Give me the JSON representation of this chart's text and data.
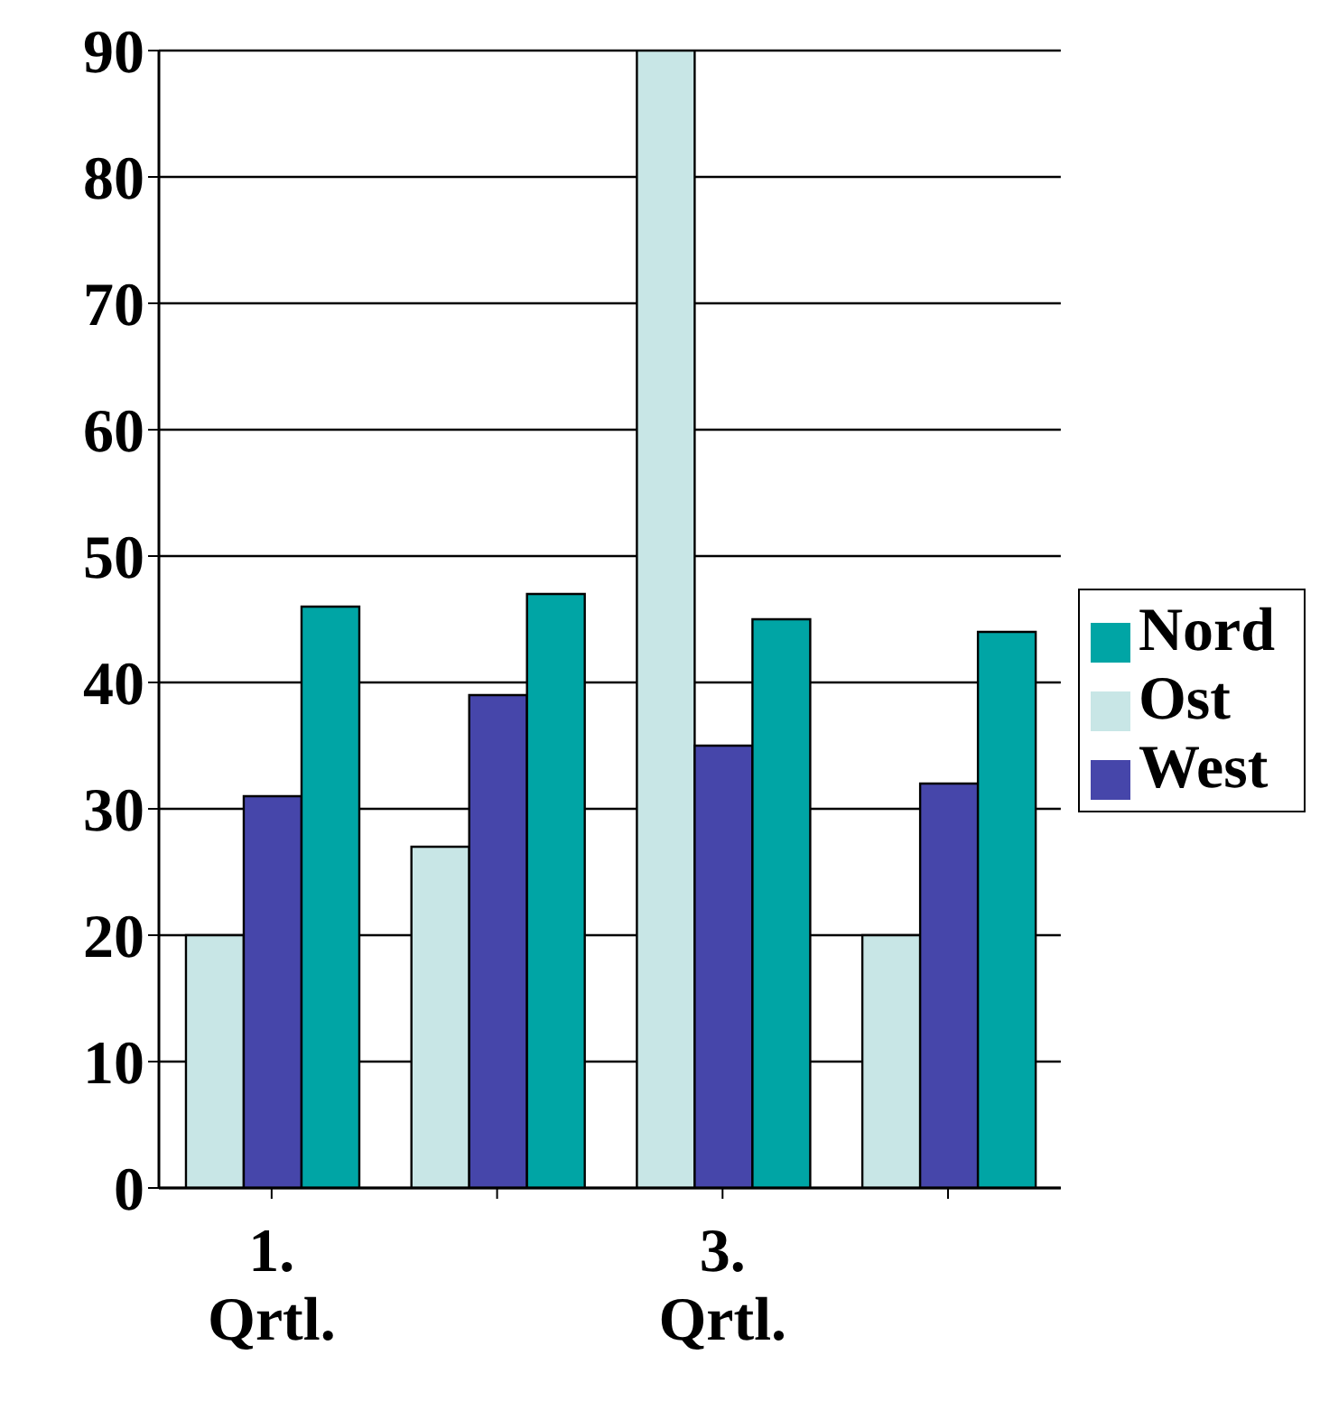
{
  "chart_data": {
    "type": "bar",
    "categories": [
      "1. Qrtl.",
      null,
      "3. Qrtl.",
      null
    ],
    "series": [
      {
        "name": "Ost",
        "color": "#c8e6e6",
        "values": [
          20,
          27,
          90,
          20
        ]
      },
      {
        "name": "West",
        "color": "#4646aa",
        "values": [
          31,
          39,
          35,
          32
        ]
      },
      {
        "name": "Nord",
        "color": "#00a5a5",
        "values": [
          46,
          47,
          45,
          44
        ]
      }
    ],
    "ylim": [
      0,
      90
    ],
    "yticks": [
      0,
      10,
      20,
      30,
      40,
      50,
      60,
      70,
      80,
      90
    ],
    "grid": "y",
    "legend": "right"
  }
}
